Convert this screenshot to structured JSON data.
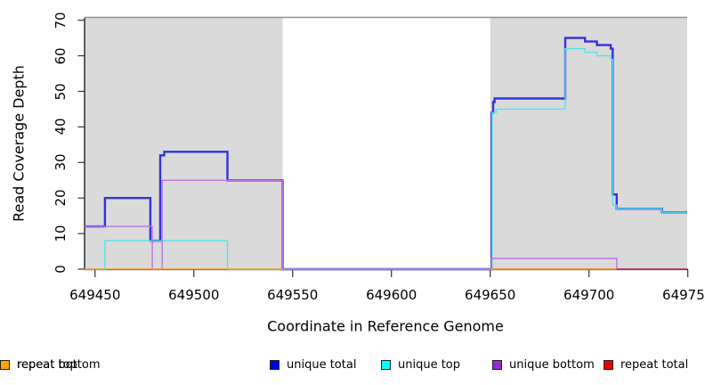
{
  "chart_data": {
    "type": "line",
    "subtype": "step-coverage-plot",
    "title": "",
    "x_axis": {
      "label": "Coordinate in Reference Genome",
      "range": [
        649444.7,
        649749.7
      ],
      "ticks": [
        649450,
        649500,
        649550,
        649600,
        649650,
        649700,
        649750
      ],
      "tick_labels": [
        "649450",
        "649500",
        "649550",
        "649600",
        "649650",
        "649700",
        "649750"
      ]
    },
    "y_axis": {
      "label": "Read Coverage Depth",
      "range": [
        0,
        70
      ],
      "ticks": [
        0,
        10,
        20,
        30,
        40,
        50,
        60,
        70
      ],
      "tick_labels": [
        "0",
        "10",
        "20",
        "30",
        "40",
        "50",
        "60",
        "70"
      ]
    },
    "grid": "off",
    "plot_background": "#FFFFFF",
    "shaded_regions": [
      {
        "x0": 649444.7,
        "x1": 649545,
        "fill": "#DADADA"
      },
      {
        "x0": 649545,
        "x1": 649650,
        "fill": "#FFFFFF"
      },
      {
        "x0": 649650,
        "x1": 649749.7,
        "fill": "#DADADA"
      }
    ],
    "top_border_color": "#909090",
    "series": [
      {
        "name": "unique total",
        "color": "#3233D6",
        "legend_color": "#0000E6",
        "line_width": 2.4,
        "runs": [
          {
            "points": [
              [
                649444.7,
                12
              ],
              [
                649455,
                20
              ],
              [
                649478,
                8
              ],
              [
                649483,
                32
              ],
              [
                649485,
                33
              ],
              [
                649517,
                25
              ],
              [
                649545,
                0
              ],
              [
                649650.7,
                44
              ],
              [
                649651.5,
                47
              ],
              [
                649652.2,
                48
              ],
              [
                649688,
                65
              ],
              [
                649698,
                64
              ],
              [
                649704,
                63
              ],
              [
                649711,
                62
              ],
              [
                649712,
                21
              ],
              [
                649714,
                17
              ],
              [
                649737,
                16
              ]
            ],
            "end": 649749.7
          }
        ]
      },
      {
        "name": "unique top",
        "color": "#55E3EC",
        "legend_color": "#00FFFF",
        "line_width": 1.4,
        "runs": [
          {
            "points": [
              [
                649444.7,
                0
              ],
              [
                649455,
                8
              ],
              [
                649517,
                0
              ],
              [
                649651,
                44
              ],
              [
                649653,
                45
              ],
              [
                649688,
                62
              ],
              [
                649698,
                61
              ],
              [
                649704,
                60
              ],
              [
                649711,
                59
              ],
              [
                649712,
                18
              ],
              [
                649714,
                17
              ],
              [
                649737,
                16
              ]
            ],
            "end": 649749.7
          }
        ]
      },
      {
        "name": "unique bottom",
        "color": "#BB76E3",
        "legend_color": "#9929CF",
        "line_width": 1.4,
        "runs": [
          {
            "points": [
              [
                649444.7,
                12
              ],
              [
                649479,
                0
              ],
              [
                649484,
                25
              ],
              [
                649545,
                0
              ],
              [
                649650.7,
                3
              ],
              [
                649714,
                0
              ]
            ],
            "end": 649749.7
          }
        ]
      },
      {
        "name": "repeat total",
        "color": "#C03052",
        "legend_color": "#EE0000",
        "line_width": 1.5,
        "runs": [
          {
            "points": [
              [
                649650,
                0
              ]
            ],
            "end": 649749.7
          }
        ]
      },
      {
        "name": "repeat top",
        "color": "#FFFF00",
        "legend_color": "#FFFF00",
        "line_width": 1.4,
        "runs": []
      },
      {
        "name": "repeat bottom",
        "color": "#FF9E1E",
        "legend_color": "#FFA500",
        "line_width": 1.6,
        "runs": [
          {
            "points": [
              [
                649444.7,
                0
              ]
            ],
            "end": 649545
          },
          {
            "points": [
              [
                649650,
                0
              ]
            ],
            "end": 649714
          }
        ]
      }
    ],
    "legend": {
      "position": "bottom",
      "items": [
        {
          "label": "unique total",
          "color": "#0000E6"
        },
        {
          "label": "unique top",
          "color": "#00FFFF"
        },
        {
          "label": "unique bottom",
          "color": "#9929CF"
        },
        {
          "label": "repeat total",
          "color": "#EE0000"
        },
        {
          "label": "repeat top",
          "color": "#FFFF00"
        },
        {
          "label": "repeat bottom",
          "color": "#FFA500"
        }
      ]
    }
  }
}
